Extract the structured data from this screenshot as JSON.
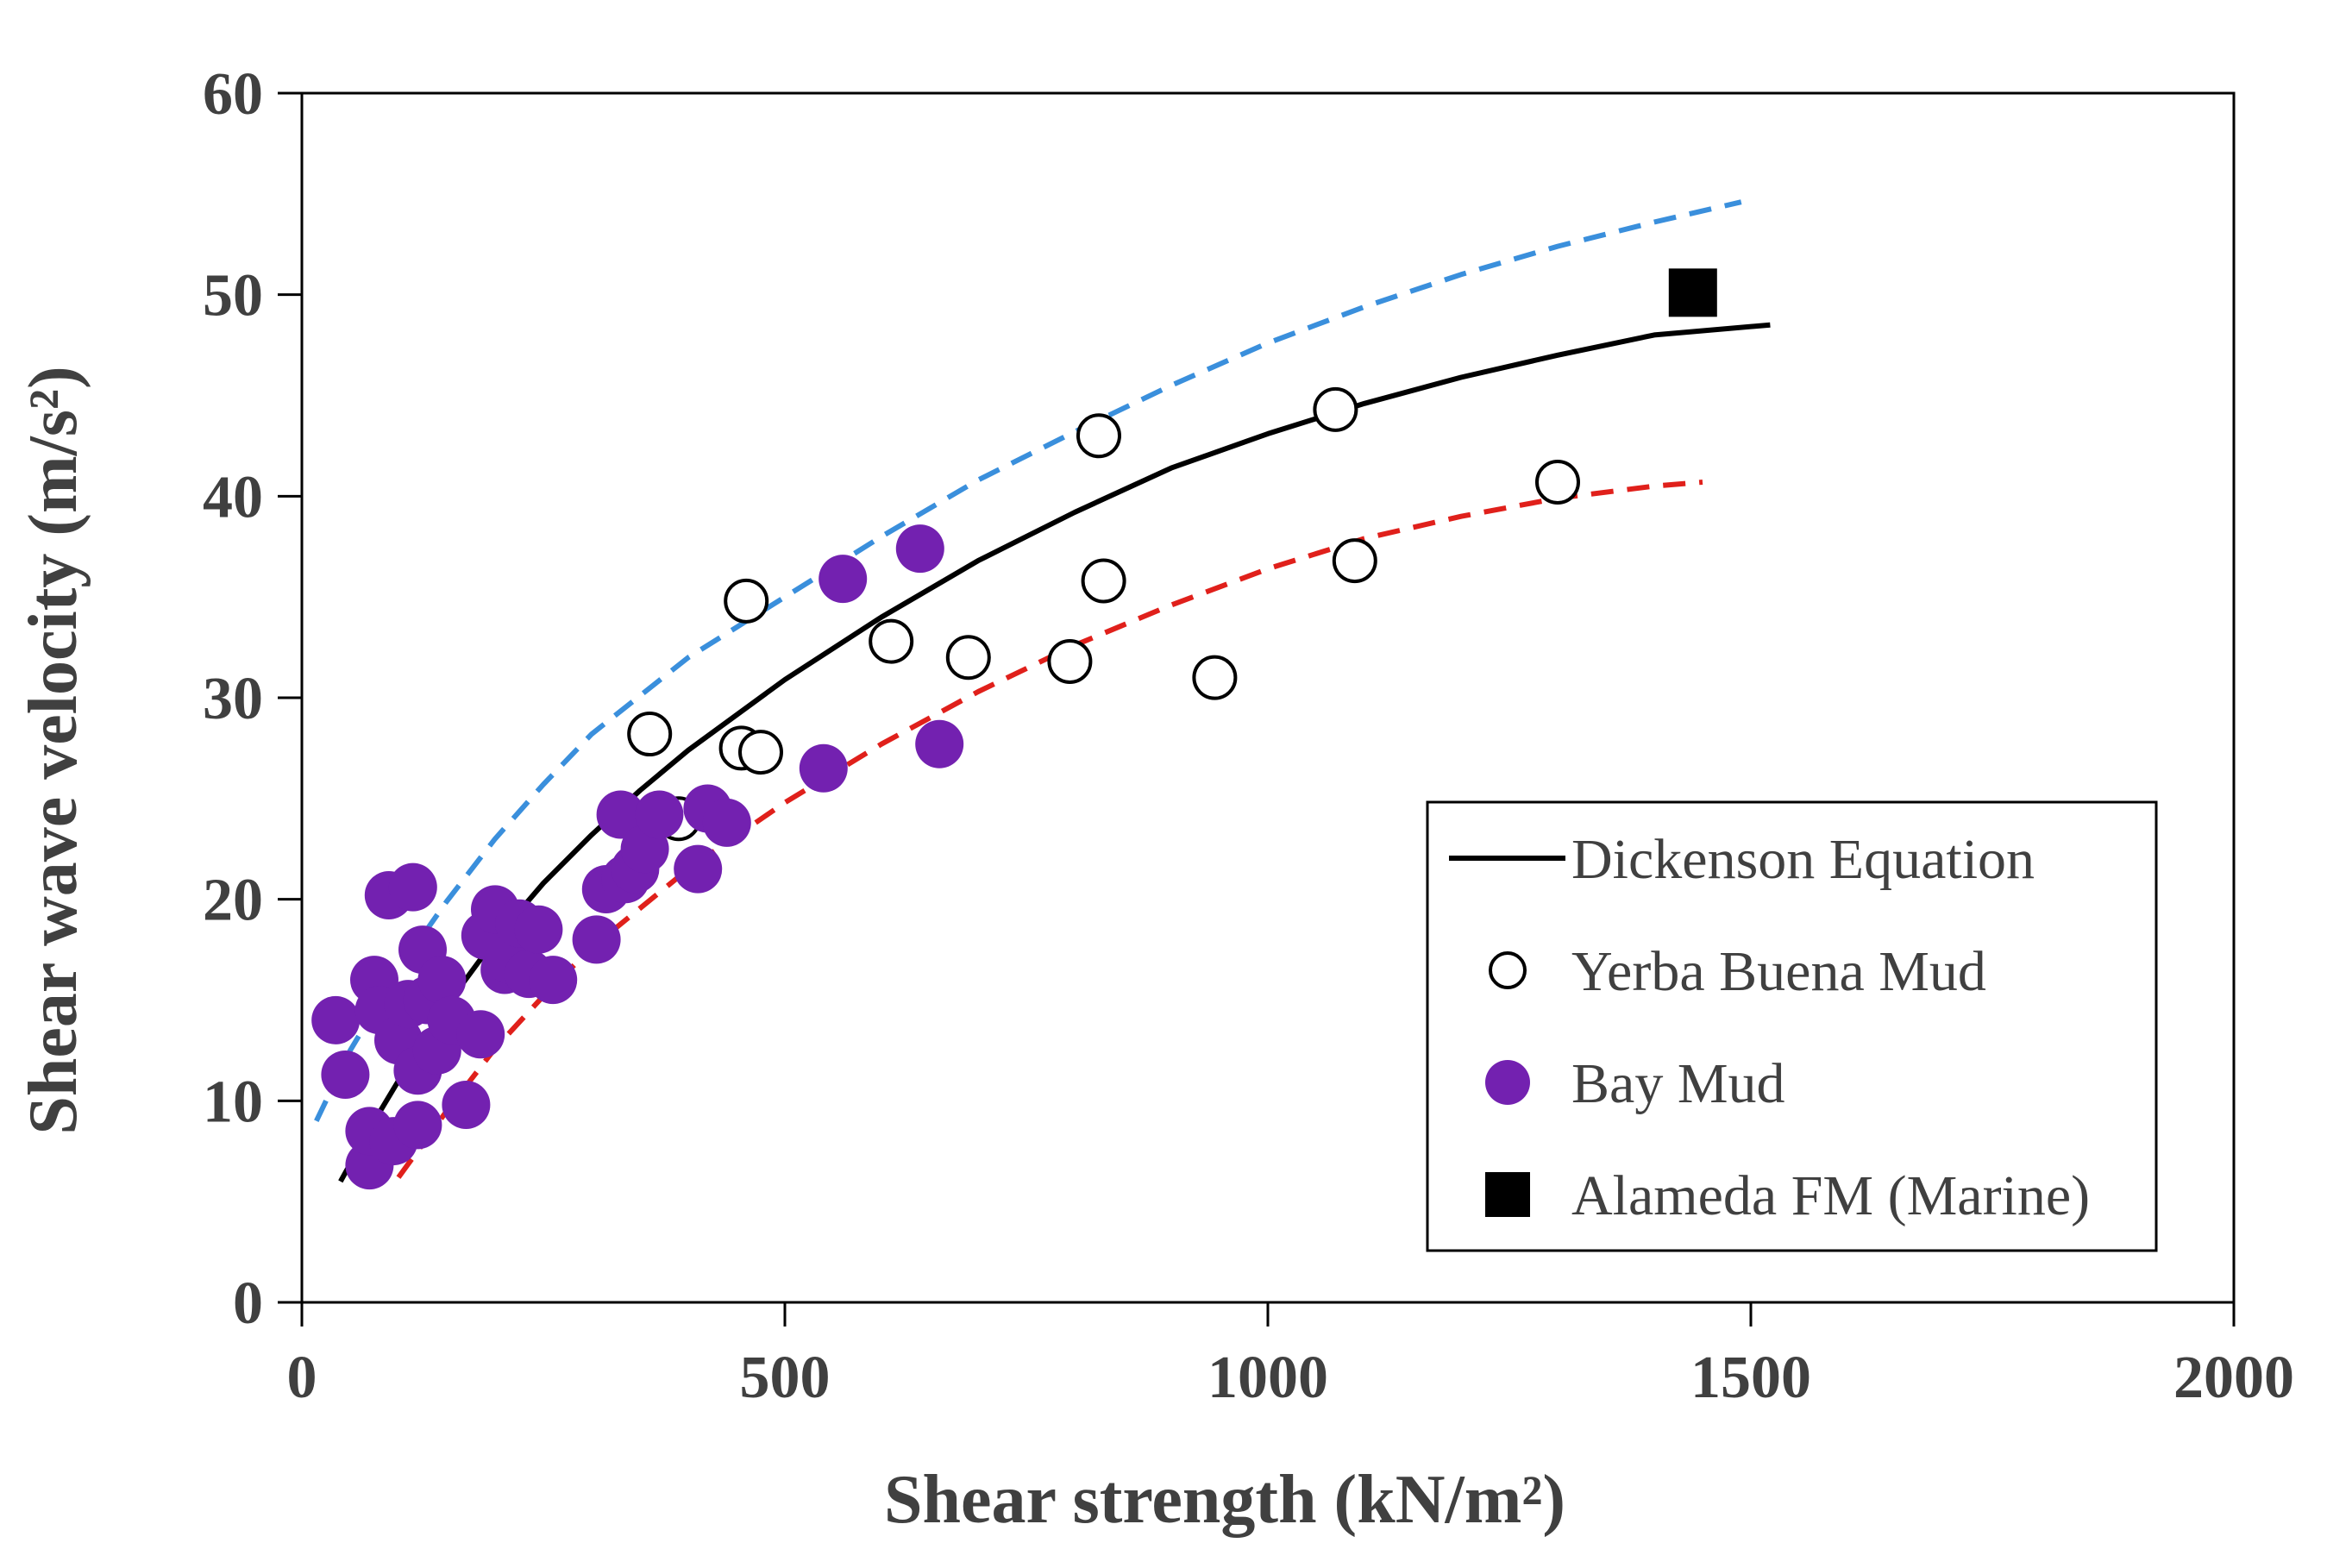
{
  "chart_data": {
    "type": "scatter",
    "title": "",
    "xlabel": "Shear strength (kN/m²)",
    "ylabel": "Shear wave velocity (m/s²)",
    "xlim": [
      0,
      2000
    ],
    "ylim": [
      0,
      60
    ],
    "xticks": [
      0,
      500,
      1000,
      1500,
      2000
    ],
    "yticks": [
      0,
      10,
      20,
      30,
      40,
      50,
      60
    ],
    "grid": false,
    "legend_position": "bottom-right",
    "colors": {
      "axis": "#000000",
      "tick_text": "#404040",
      "dickenson": "#000000",
      "upper_bound": "#3a8fdc",
      "lower_bound": "#e0201b",
      "bay_mud": "#7321b0",
      "yerba_buena": "#ffffff",
      "alameda": "#000000"
    },
    "legend": [
      {
        "key": "dickenson",
        "label": "Dickenson Equation"
      },
      {
        "key": "yerba_buena",
        "label": "Yerba Buena Mud"
      },
      {
        "key": "bay_mud",
        "label": "Bay Mud"
      },
      {
        "key": "alameda",
        "label": "Alameda FM (Marine)"
      }
    ],
    "lines": [
      {
        "name": "Dickenson Equation",
        "style": "solid",
        "color_key": "dickenson",
        "x": [
          40,
          70,
          100,
          130,
          160,
          200,
          250,
          300,
          350,
          400,
          500,
          600,
          700,
          800,
          900,
          1000,
          1100,
          1200,
          1300,
          1400,
          1520
        ],
        "y": [
          6.0,
          8.6,
          11.0,
          13.3,
          15.4,
          18.0,
          20.8,
          23.2,
          25.4,
          27.4,
          30.9,
          34.0,
          36.8,
          39.2,
          41.4,
          43.1,
          44.6,
          45.9,
          47.0,
          48.0,
          48.5
        ]
      },
      {
        "name": "Upper bound",
        "style": "dashed",
        "color_key": "upper_bound",
        "x": [
          15,
          50,
          100,
          150,
          200,
          250,
          300,
          400,
          500,
          600,
          700,
          800,
          900,
          1000,
          1100,
          1200,
          1300,
          1400,
          1490
        ],
        "y": [
          9.0,
          12.5,
          16.5,
          19.9,
          23.0,
          25.7,
          28.2,
          32.0,
          35.0,
          38.0,
          40.8,
          43.2,
          45.5,
          47.6,
          49.4,
          51.0,
          52.4,
          53.6,
          54.6
        ]
      },
      {
        "name": "Lower bound",
        "style": "dashed",
        "color_key": "lower_bound",
        "x": [
          100,
          150,
          200,
          250,
          300,
          400,
          500,
          600,
          700,
          800,
          900,
          1000,
          1100,
          1200,
          1300,
          1400,
          1450
        ],
        "y": [
          6.2,
          9.5,
          12.6,
          15.2,
          17.6,
          21.5,
          24.8,
          27.7,
          30.3,
          32.6,
          34.6,
          36.4,
          37.9,
          39.0,
          39.9,
          40.5,
          40.7
        ]
      }
    ],
    "series": [
      {
        "name": "Yerba Buena Mud",
        "marker": "circle-open",
        "x": [
          360,
          390,
          455,
          460,
          475,
          610,
          690,
          795,
          825,
          830,
          945,
          1070,
          1090,
          1300
        ],
        "y": [
          28.2,
          24.0,
          27.5,
          34.8,
          27.3,
          32.8,
          32.0,
          31.8,
          43.0,
          35.8,
          31.0,
          44.3,
          36.8,
          40.7
        ]
      },
      {
        "name": "Bay Mud",
        "marker": "circle-filled",
        "x": [
          35,
          45,
          70,
          70,
          75,
          80,
          90,
          95,
          100,
          110,
          115,
          120,
          120,
          125,
          130,
          140,
          145,
          155,
          170,
          185,
          190,
          200,
          210,
          215,
          225,
          235,
          245,
          260,
          305,
          315,
          330,
          335,
          345,
          355,
          370,
          410,
          420,
          440,
          540,
          560,
          640,
          660
        ],
        "y": [
          14.0,
          11.3,
          6.8,
          8.5,
          16.0,
          14.5,
          20.2,
          8.0,
          13.0,
          14.8,
          20.6,
          8.8,
          11.5,
          17.5,
          15.0,
          12.5,
          16.0,
          14.0,
          9.8,
          13.3,
          18.2,
          19.5,
          16.5,
          17.0,
          18.8,
          16.3,
          18.5,
          16.0,
          18.0,
          20.5,
          24.2,
          21.0,
          21.5,
          22.5,
          24.2,
          21.5,
          24.5,
          23.8,
          26.5,
          35.9,
          37.4,
          27.7
        ]
      },
      {
        "name": "Alameda FM (Marine)",
        "marker": "square-filled",
        "x": [
          1440
        ],
        "y": [
          50.1
        ]
      }
    ]
  }
}
